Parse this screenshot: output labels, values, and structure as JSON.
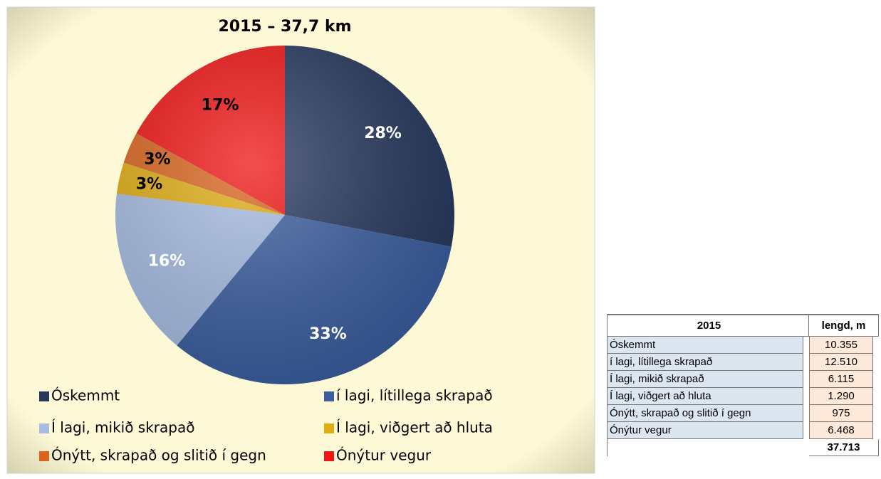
{
  "chart_data": {
    "type": "pie",
    "title": "2015 – 37,7 km",
    "categories": [
      "Óskemmt",
      "í lagi, lítillega skrapað",
      "Í lagi, mikið skrapað",
      "Í lagi, viðgert að hluta",
      "Ónýtt, skrapað og slitið í gegn",
      "Ónýtur vegur"
    ],
    "values": [
      28,
      33,
      16,
      3,
      3,
      17
    ],
    "value_labels": [
      "28%",
      "33%",
      "16%",
      "3%",
      "3%",
      "17%"
    ],
    "colors": [
      "#26375e",
      "#3a5ea0",
      "#a7bde3",
      "#e0ad12",
      "#d9641d",
      "#f01414"
    ],
    "legend": "bottom"
  },
  "table": {
    "header": [
      "2015",
      "lengd, m"
    ],
    "rows": [
      [
        "Óskemmt",
        "10.355"
      ],
      [
        "í lagi, lítillega skrapað",
        "12.510"
      ],
      [
        "Í lagi, mikið skrapað",
        "6.115"
      ],
      [
        "Í lagi, viðgert að hluta",
        "1.290"
      ],
      [
        "Ónýtt, skrapað og slitið í gegn",
        "975"
      ],
      [
        "Ónýtur vegur",
        "6.468"
      ]
    ],
    "total": "37.713"
  }
}
